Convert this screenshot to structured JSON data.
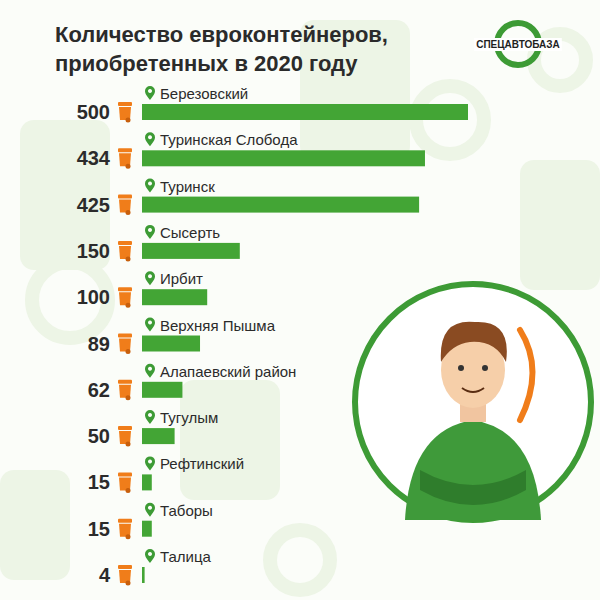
{
  "chart_data": {
    "type": "bar",
    "orientation": "horizontal",
    "title": "Количество евроконтейнеров, приобретенных в 2020 году",
    "logo": "СПЕЦАВТОБАЗА",
    "categories": [
      "Березовский",
      "Туринская Слобода",
      "Туринск",
      "Сысерть",
      "Ирбит",
      "Верхняя Пышма",
      "Алапаевский район",
      "Тугулым",
      "Рефтинский",
      "Таборы",
      "Талица"
    ],
    "values": [
      500,
      434,
      425,
      150,
      100,
      89,
      62,
      50,
      15,
      15,
      4
    ],
    "color": "#43a535",
    "data_labels": true,
    "tick_labels": false
  }
}
